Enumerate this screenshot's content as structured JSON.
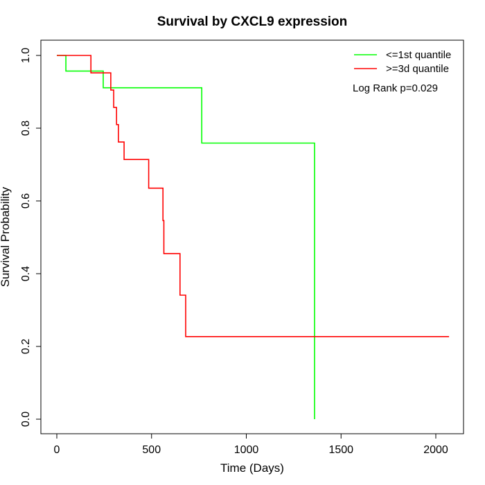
{
  "chart_data": {
    "type": "line",
    "title": "Survival by CXCL9 expression",
    "xlabel": "Time (Days)",
    "ylabel": "Survival Probability",
    "xlim": [
      0,
      2070
    ],
    "ylim": [
      0,
      1
    ],
    "x_ticks": [
      0,
      500,
      1000,
      1500,
      2000
    ],
    "y_ticks": [
      0.0,
      0.2,
      0.4,
      0.6,
      0.8,
      1.0
    ],
    "x_tick_labels": [
      "0",
      "500",
      "1000",
      "1500",
      "2000"
    ],
    "y_tick_labels": [
      "0.0",
      "0.2",
      "0.4",
      "0.6",
      "0.8",
      "1.0"
    ],
    "grid": false,
    "legend_position": "top-right",
    "step": true,
    "series": [
      {
        "name": "<=1st quantile",
        "color": "#00ff00",
        "x": [
          0,
          48,
          245,
          765,
          1360,
          1360
        ],
        "y": [
          1.0,
          0.957,
          0.911,
          0.759,
          0.759,
          0.0
        ]
      },
      {
        "name": ">=3d quantile",
        "color": "#ff0000",
        "x": [
          0,
          180,
          280,
          285,
          300,
          315,
          325,
          355,
          485,
          560,
          565,
          650,
          680,
          2070
        ],
        "y": [
          1.0,
          0.952,
          0.952,
          0.905,
          0.857,
          0.81,
          0.762,
          0.714,
          0.635,
          0.546,
          0.455,
          0.341,
          0.227,
          0.227
        ]
      }
    ],
    "annotations": [
      "Log Rank p=0.029"
    ]
  }
}
